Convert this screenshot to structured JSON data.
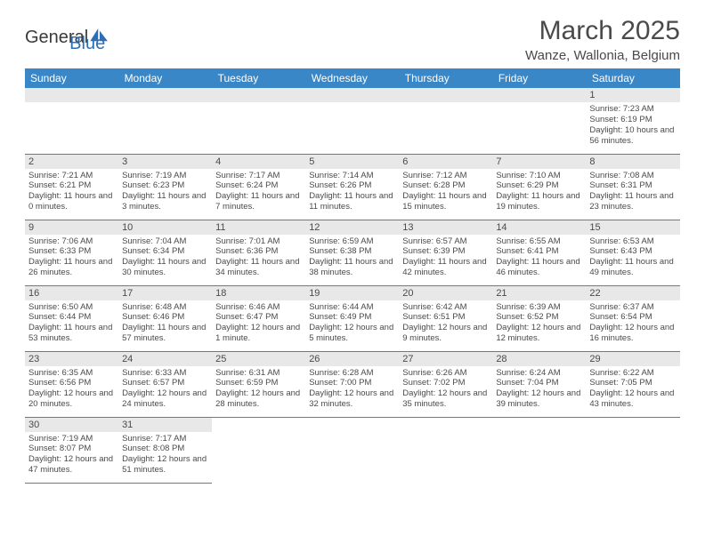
{
  "logo": {
    "general": "General",
    "blue": "Blue"
  },
  "title": "March 2025",
  "location": "Wanze, Wallonia, Belgium",
  "colors": {
    "header_bg": "#3a87c7",
    "header_text": "#ffffff",
    "daynum_bg": "#e8e8e8",
    "border": "#3a87c7",
    "text": "#4a4a4a",
    "logo_blue": "#2c6fb5"
  },
  "weekdays": [
    "Sunday",
    "Monday",
    "Tuesday",
    "Wednesday",
    "Thursday",
    "Friday",
    "Saturday"
  ],
  "weeks": [
    [
      {
        "num": "",
        "sunrise": "",
        "sunset": "",
        "daylight": ""
      },
      {
        "num": "",
        "sunrise": "",
        "sunset": "",
        "daylight": ""
      },
      {
        "num": "",
        "sunrise": "",
        "sunset": "",
        "daylight": ""
      },
      {
        "num": "",
        "sunrise": "",
        "sunset": "",
        "daylight": ""
      },
      {
        "num": "",
        "sunrise": "",
        "sunset": "",
        "daylight": ""
      },
      {
        "num": "",
        "sunrise": "",
        "sunset": "",
        "daylight": ""
      },
      {
        "num": "1",
        "sunrise": "Sunrise: 7:23 AM",
        "sunset": "Sunset: 6:19 PM",
        "daylight": "Daylight: 10 hours and 56 minutes."
      }
    ],
    [
      {
        "num": "2",
        "sunrise": "Sunrise: 7:21 AM",
        "sunset": "Sunset: 6:21 PM",
        "daylight": "Daylight: 11 hours and 0 minutes."
      },
      {
        "num": "3",
        "sunrise": "Sunrise: 7:19 AM",
        "sunset": "Sunset: 6:23 PM",
        "daylight": "Daylight: 11 hours and 3 minutes."
      },
      {
        "num": "4",
        "sunrise": "Sunrise: 7:17 AM",
        "sunset": "Sunset: 6:24 PM",
        "daylight": "Daylight: 11 hours and 7 minutes."
      },
      {
        "num": "5",
        "sunrise": "Sunrise: 7:14 AM",
        "sunset": "Sunset: 6:26 PM",
        "daylight": "Daylight: 11 hours and 11 minutes."
      },
      {
        "num": "6",
        "sunrise": "Sunrise: 7:12 AM",
        "sunset": "Sunset: 6:28 PM",
        "daylight": "Daylight: 11 hours and 15 minutes."
      },
      {
        "num": "7",
        "sunrise": "Sunrise: 7:10 AM",
        "sunset": "Sunset: 6:29 PM",
        "daylight": "Daylight: 11 hours and 19 minutes."
      },
      {
        "num": "8",
        "sunrise": "Sunrise: 7:08 AM",
        "sunset": "Sunset: 6:31 PM",
        "daylight": "Daylight: 11 hours and 23 minutes."
      }
    ],
    [
      {
        "num": "9",
        "sunrise": "Sunrise: 7:06 AM",
        "sunset": "Sunset: 6:33 PM",
        "daylight": "Daylight: 11 hours and 26 minutes."
      },
      {
        "num": "10",
        "sunrise": "Sunrise: 7:04 AM",
        "sunset": "Sunset: 6:34 PM",
        "daylight": "Daylight: 11 hours and 30 minutes."
      },
      {
        "num": "11",
        "sunrise": "Sunrise: 7:01 AM",
        "sunset": "Sunset: 6:36 PM",
        "daylight": "Daylight: 11 hours and 34 minutes."
      },
      {
        "num": "12",
        "sunrise": "Sunrise: 6:59 AM",
        "sunset": "Sunset: 6:38 PM",
        "daylight": "Daylight: 11 hours and 38 minutes."
      },
      {
        "num": "13",
        "sunrise": "Sunrise: 6:57 AM",
        "sunset": "Sunset: 6:39 PM",
        "daylight": "Daylight: 11 hours and 42 minutes."
      },
      {
        "num": "14",
        "sunrise": "Sunrise: 6:55 AM",
        "sunset": "Sunset: 6:41 PM",
        "daylight": "Daylight: 11 hours and 46 minutes."
      },
      {
        "num": "15",
        "sunrise": "Sunrise: 6:53 AM",
        "sunset": "Sunset: 6:43 PM",
        "daylight": "Daylight: 11 hours and 49 minutes."
      }
    ],
    [
      {
        "num": "16",
        "sunrise": "Sunrise: 6:50 AM",
        "sunset": "Sunset: 6:44 PM",
        "daylight": "Daylight: 11 hours and 53 minutes."
      },
      {
        "num": "17",
        "sunrise": "Sunrise: 6:48 AM",
        "sunset": "Sunset: 6:46 PM",
        "daylight": "Daylight: 11 hours and 57 minutes."
      },
      {
        "num": "18",
        "sunrise": "Sunrise: 6:46 AM",
        "sunset": "Sunset: 6:47 PM",
        "daylight": "Daylight: 12 hours and 1 minute."
      },
      {
        "num": "19",
        "sunrise": "Sunrise: 6:44 AM",
        "sunset": "Sunset: 6:49 PM",
        "daylight": "Daylight: 12 hours and 5 minutes."
      },
      {
        "num": "20",
        "sunrise": "Sunrise: 6:42 AM",
        "sunset": "Sunset: 6:51 PM",
        "daylight": "Daylight: 12 hours and 9 minutes."
      },
      {
        "num": "21",
        "sunrise": "Sunrise: 6:39 AM",
        "sunset": "Sunset: 6:52 PM",
        "daylight": "Daylight: 12 hours and 12 minutes."
      },
      {
        "num": "22",
        "sunrise": "Sunrise: 6:37 AM",
        "sunset": "Sunset: 6:54 PM",
        "daylight": "Daylight: 12 hours and 16 minutes."
      }
    ],
    [
      {
        "num": "23",
        "sunrise": "Sunrise: 6:35 AM",
        "sunset": "Sunset: 6:56 PM",
        "daylight": "Daylight: 12 hours and 20 minutes."
      },
      {
        "num": "24",
        "sunrise": "Sunrise: 6:33 AM",
        "sunset": "Sunset: 6:57 PM",
        "daylight": "Daylight: 12 hours and 24 minutes."
      },
      {
        "num": "25",
        "sunrise": "Sunrise: 6:31 AM",
        "sunset": "Sunset: 6:59 PM",
        "daylight": "Daylight: 12 hours and 28 minutes."
      },
      {
        "num": "26",
        "sunrise": "Sunrise: 6:28 AM",
        "sunset": "Sunset: 7:00 PM",
        "daylight": "Daylight: 12 hours and 32 minutes."
      },
      {
        "num": "27",
        "sunrise": "Sunrise: 6:26 AM",
        "sunset": "Sunset: 7:02 PM",
        "daylight": "Daylight: 12 hours and 35 minutes."
      },
      {
        "num": "28",
        "sunrise": "Sunrise: 6:24 AM",
        "sunset": "Sunset: 7:04 PM",
        "daylight": "Daylight: 12 hours and 39 minutes."
      },
      {
        "num": "29",
        "sunrise": "Sunrise: 6:22 AM",
        "sunset": "Sunset: 7:05 PM",
        "daylight": "Daylight: 12 hours and 43 minutes."
      }
    ],
    [
      {
        "num": "30",
        "sunrise": "Sunrise: 7:19 AM",
        "sunset": "Sunset: 8:07 PM",
        "daylight": "Daylight: 12 hours and 47 minutes."
      },
      {
        "num": "31",
        "sunrise": "Sunrise: 7:17 AM",
        "sunset": "Sunset: 8:08 PM",
        "daylight": "Daylight: 12 hours and 51 minutes."
      },
      {
        "num": "",
        "sunrise": "",
        "sunset": "",
        "daylight": ""
      },
      {
        "num": "",
        "sunrise": "",
        "sunset": "",
        "daylight": ""
      },
      {
        "num": "",
        "sunrise": "",
        "sunset": "",
        "daylight": ""
      },
      {
        "num": "",
        "sunrise": "",
        "sunset": "",
        "daylight": ""
      },
      {
        "num": "",
        "sunrise": "",
        "sunset": "",
        "daylight": ""
      }
    ]
  ]
}
